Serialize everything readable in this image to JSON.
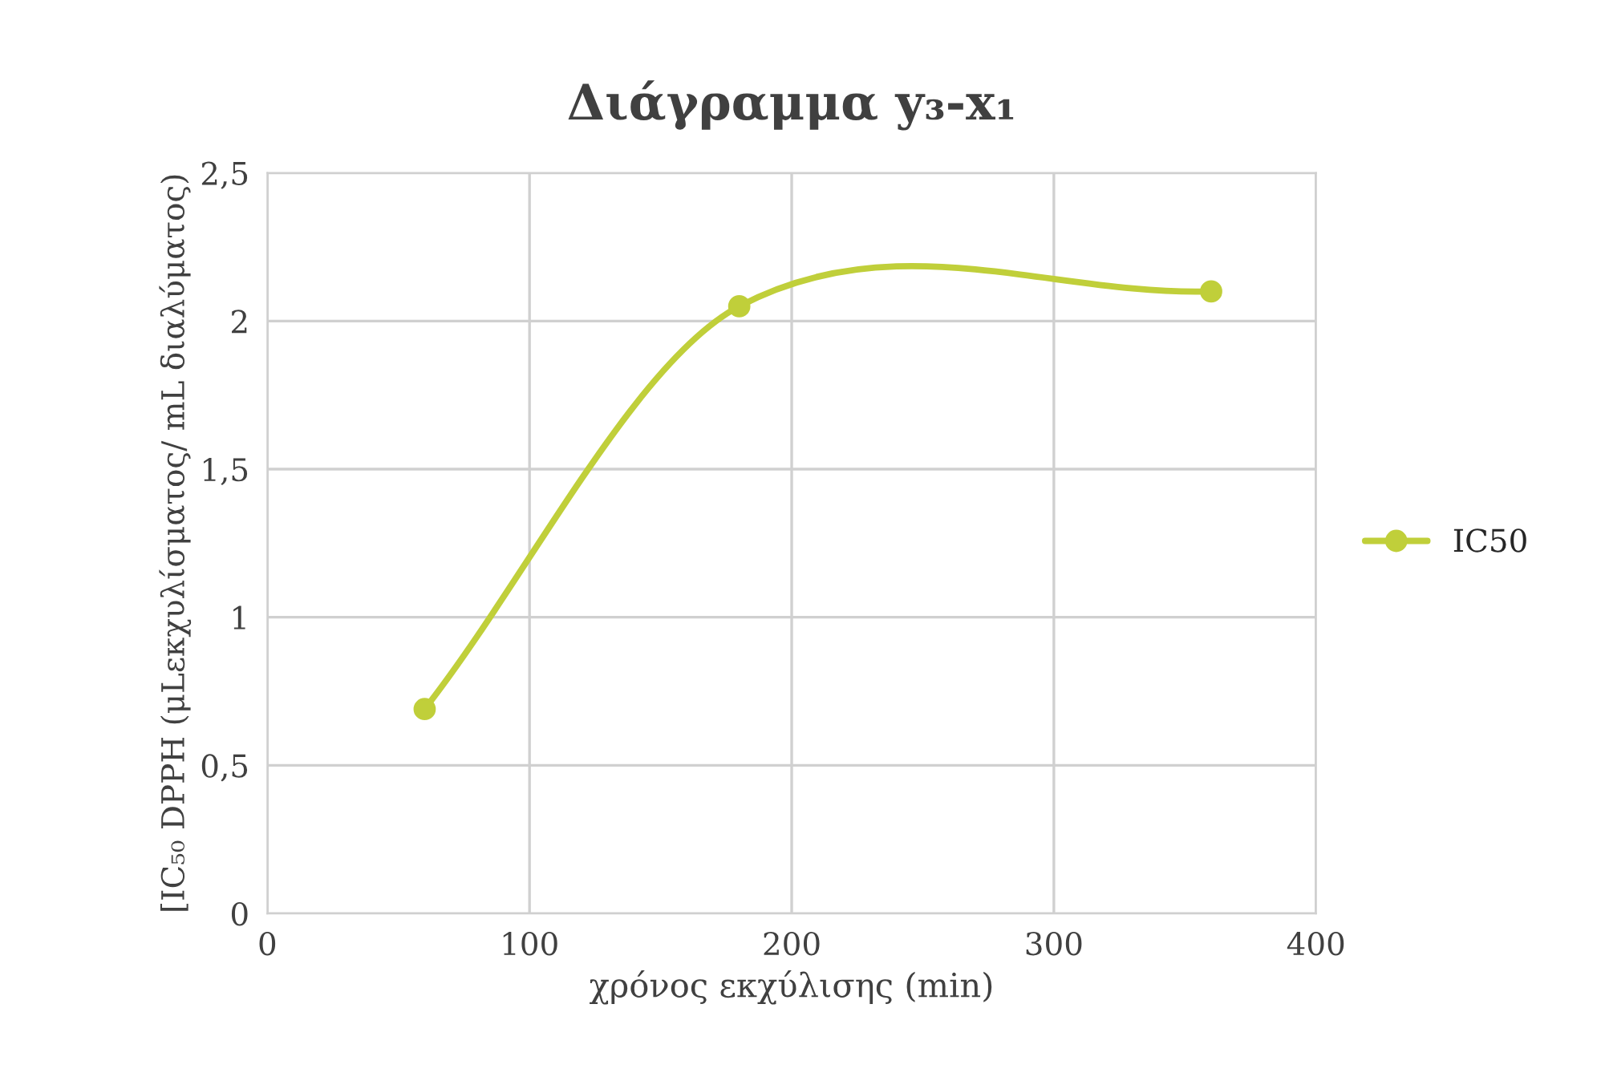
{
  "chart_data": {
    "type": "line",
    "title": "Διάγραμμα y₃-x₁",
    "xlabel": "χρόνος εκχύλισης (min)",
    "ylabel": "[IC₅₀ DPPH (μLεκχυλίσματος/ mL διαλύματος)",
    "series": [
      {
        "name": "IC50",
        "color": "#c0cf3a",
        "x": [
          60,
          180,
          360
        ],
        "values": [
          0.69,
          2.05,
          2.1
        ]
      }
    ],
    "xlim": [
      0,
      400
    ],
    "xticks": [
      0,
      100,
      200,
      300,
      400
    ],
    "ylim": [
      0,
      2.5
    ],
    "yticks": [
      0,
      {
        "value": 0.5,
        "label": "0,5"
      },
      1,
      {
        "value": 1.5,
        "label": "1,5"
      },
      2,
      {
        "value": 2.5,
        "label": "2,5"
      }
    ],
    "grid": true,
    "legend": "right",
    "marker": "circle",
    "line_style": "solid"
  }
}
